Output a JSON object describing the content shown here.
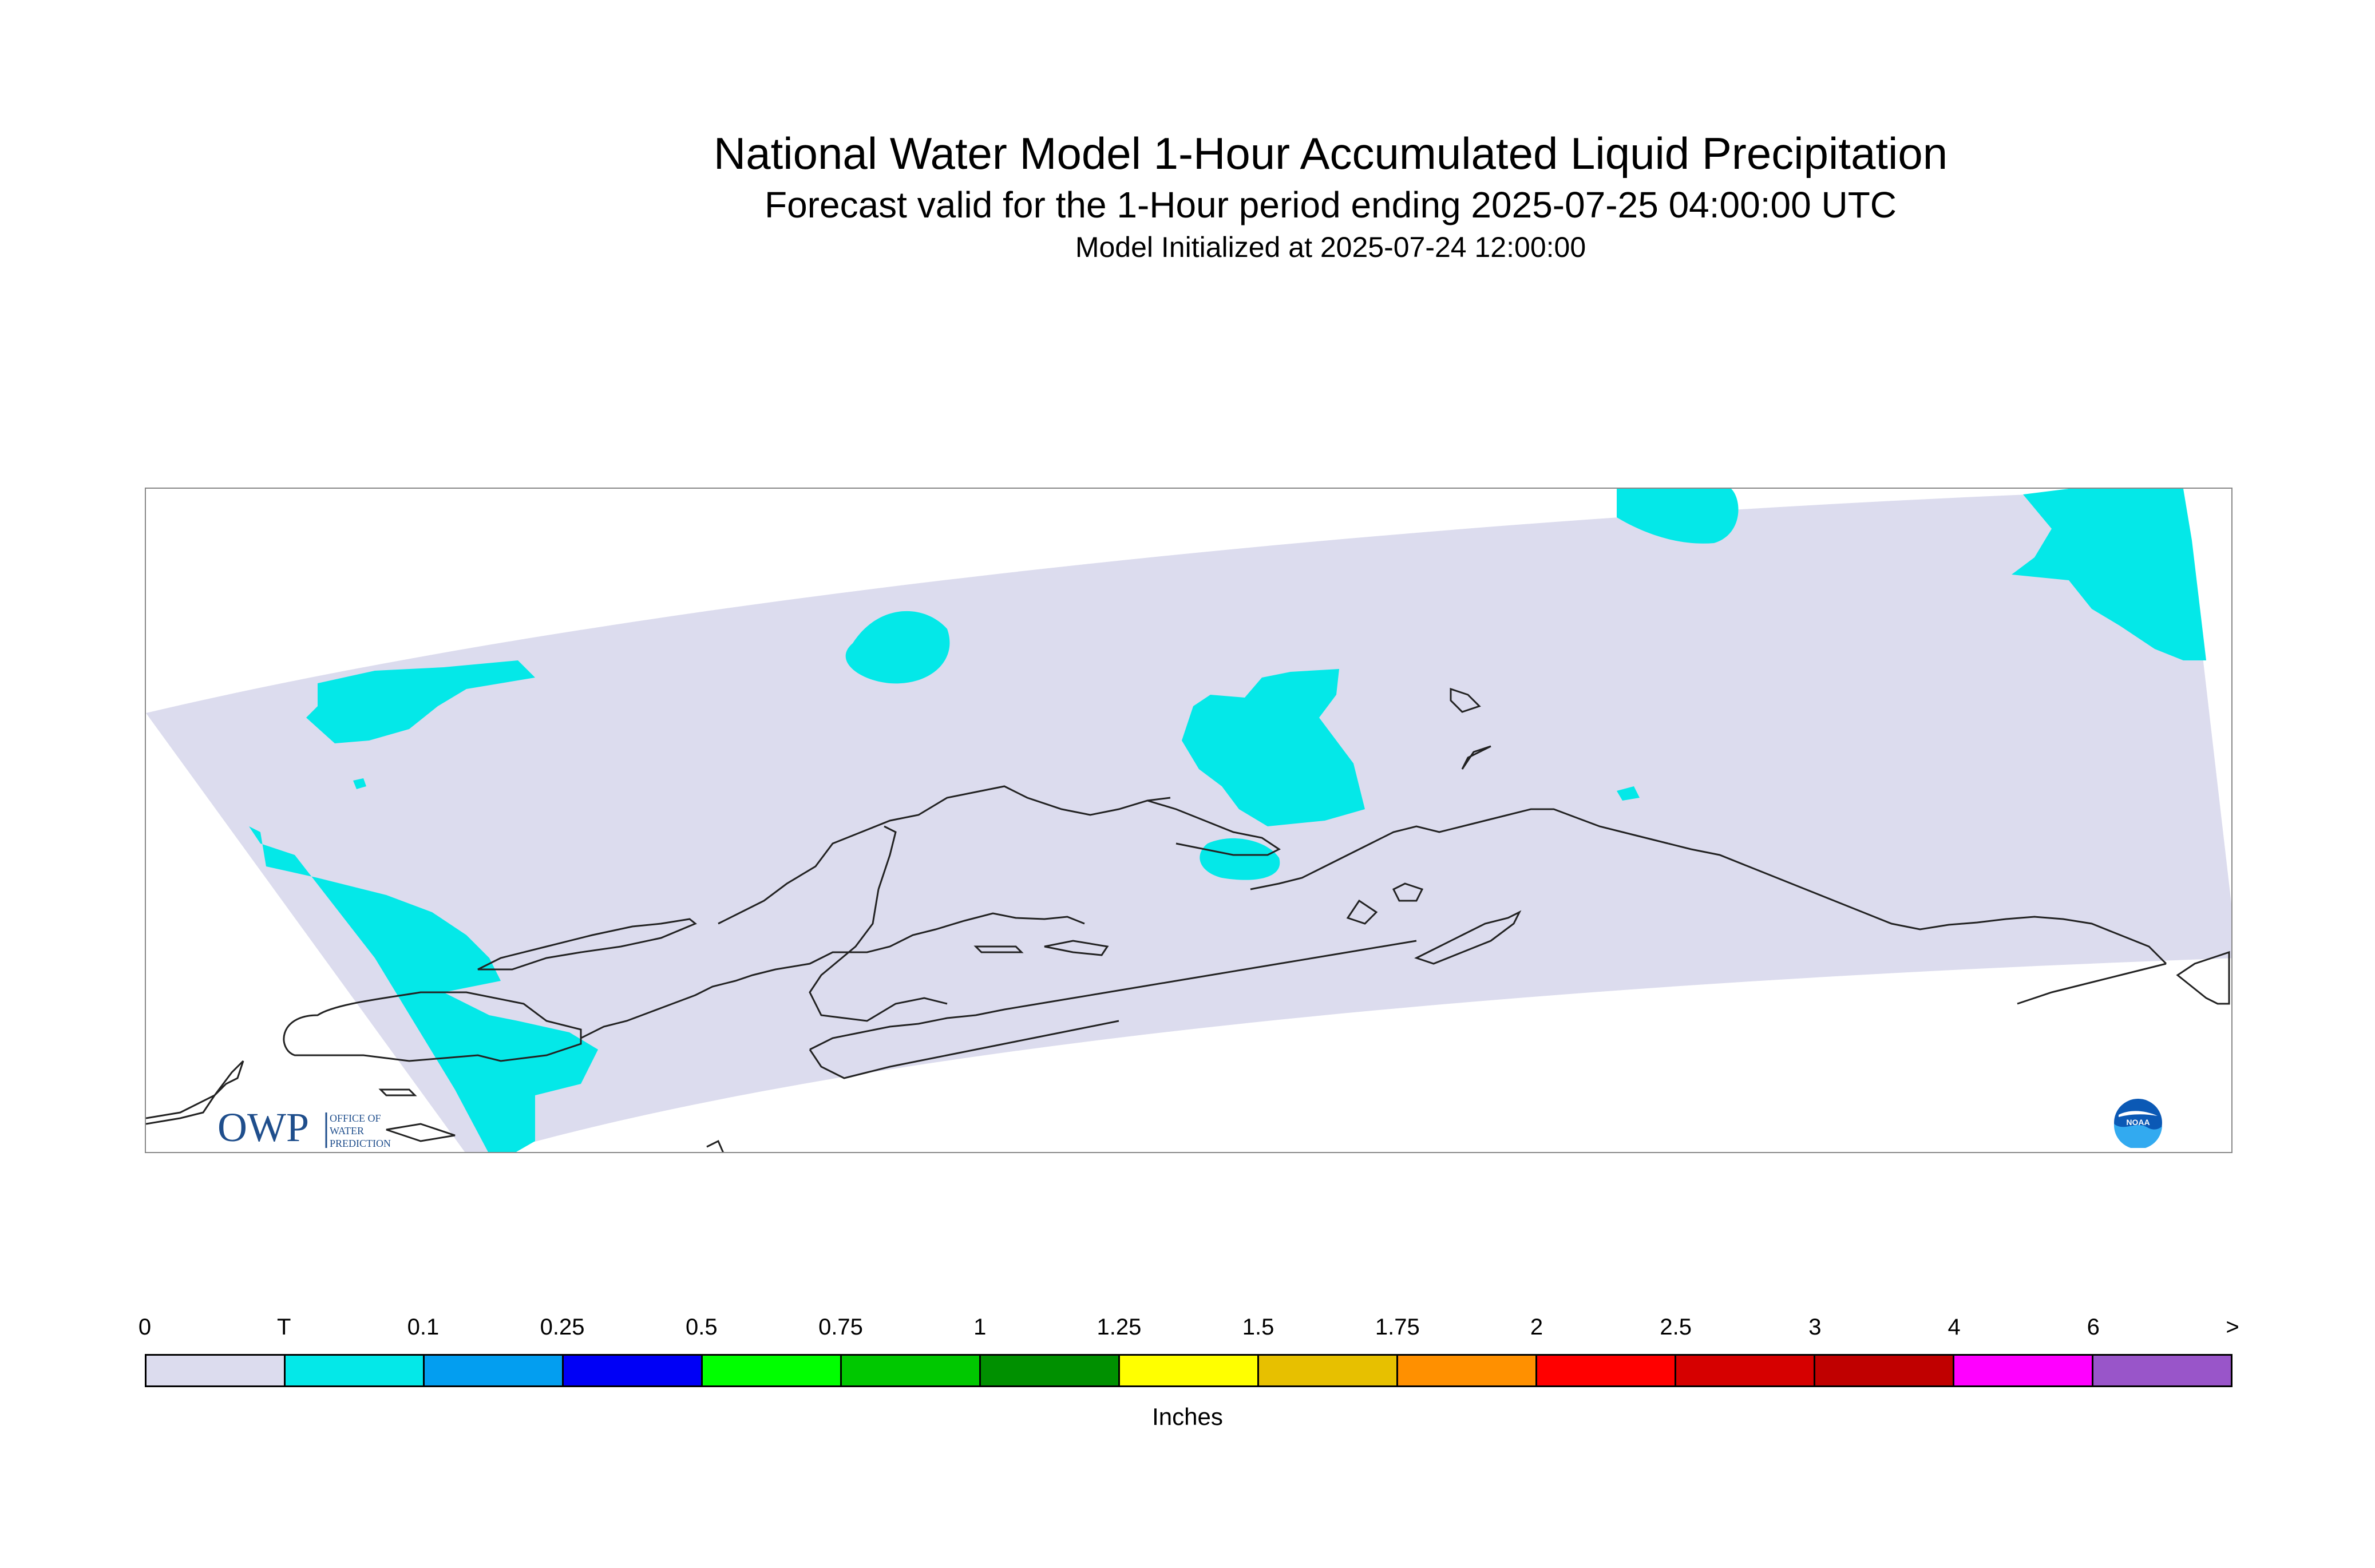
{
  "header": {
    "title": "National Water Model 1-Hour Accumulated Liquid Precipitation",
    "subtitle": "Forecast valid for the 1-Hour period ending 2025-07-25 04:00:00 UTC",
    "initialized": "Model Initialized at 2025-07-24 12:00:00"
  },
  "map": {
    "domain_color": "#dcdcee",
    "precip_color": "#04e8e8",
    "coastline_color": "#222222",
    "owp_logo": {
      "icon": "owp-logo",
      "text_main": "OWP",
      "text_lines": [
        "OFFICE OF",
        "WATER",
        "PREDICTION"
      ],
      "color": "#1f4e8c"
    },
    "noaa_logo": {
      "icon": "noaa-logo",
      "text": "NOAA"
    }
  },
  "legend": {
    "labels": [
      "0",
      "T",
      "0.1",
      "0.25",
      "0.5",
      "0.75",
      "1",
      "1.25",
      "1.5",
      "1.75",
      "2",
      "2.5",
      "3",
      "4",
      "6",
      ">"
    ],
    "colors": [
      "#dcdcee",
      "#04e8e8",
      "#039ef0",
      "#0000f6",
      "#00ff00",
      "#00c800",
      "#009000",
      "#ffff00",
      "#e7c000",
      "#ff9000",
      "#ff0000",
      "#d60000",
      "#c00000",
      "#ff00ff",
      "#9955c9"
    ],
    "units": "Inches"
  }
}
